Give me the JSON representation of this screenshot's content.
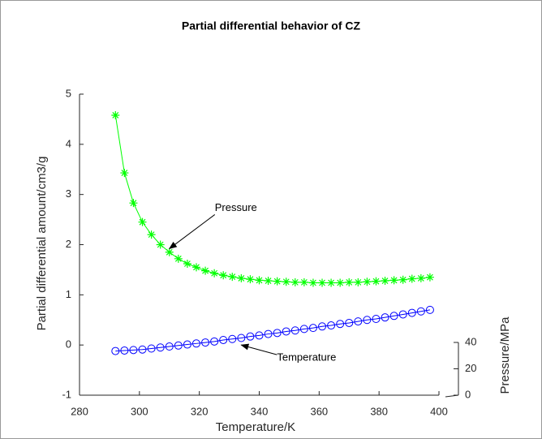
{
  "chart_data": {
    "type": "line",
    "title": "Partial differential behavior of CZ",
    "xlabel": "Temperature/K",
    "ylabel": "Partial differential amount/cm3/g",
    "zlabel": "Pressure/MPa",
    "x": [
      292,
      295,
      298,
      301,
      304,
      307,
      310,
      313,
      316,
      319,
      322,
      325,
      328,
      331,
      334,
      337,
      340,
      343,
      346,
      349,
      352,
      355,
      358,
      361,
      364,
      367,
      370,
      373,
      376,
      379,
      382,
      385,
      388,
      391,
      394,
      397
    ],
    "series": [
      {
        "name": "Pressure",
        "color": "#00ff00",
        "marker": "asterisk",
        "values": [
          4.58,
          3.43,
          2.83,
          2.45,
          2.2,
          2.0,
          1.85,
          1.72,
          1.62,
          1.55,
          1.48,
          1.43,
          1.39,
          1.36,
          1.33,
          1.31,
          1.29,
          1.28,
          1.27,
          1.26,
          1.25,
          1.25,
          1.24,
          1.24,
          1.24,
          1.24,
          1.25,
          1.25,
          1.26,
          1.27,
          1.28,
          1.29,
          1.3,
          1.32,
          1.33,
          1.35
        ]
      },
      {
        "name": "Temperature",
        "color": "#0000ff",
        "marker": "circle",
        "values": [
          -0.12,
          -0.11,
          -0.1,
          -0.09,
          -0.07,
          -0.05,
          -0.03,
          -0.01,
          0.01,
          0.03,
          0.05,
          0.07,
          0.1,
          0.12,
          0.14,
          0.17,
          0.19,
          0.22,
          0.24,
          0.27,
          0.29,
          0.32,
          0.34,
          0.37,
          0.39,
          0.42,
          0.44,
          0.47,
          0.5,
          0.52,
          0.55,
          0.58,
          0.61,
          0.64,
          0.67,
          0.7
        ]
      }
    ],
    "annotations": [
      {
        "text": "Pressure",
        "x": 310,
        "y": 1.92
      },
      {
        "text": "Temperature",
        "x": 334,
        "y": 0.0
      }
    ],
    "xlim": [
      280,
      400
    ],
    "xticks": [
      280,
      300,
      320,
      340,
      360,
      380,
      400
    ],
    "ylim": [
      -1,
      5
    ],
    "yticks": [
      -1,
      0,
      1,
      2,
      3,
      4,
      5
    ],
    "zlim": [
      0,
      40
    ],
    "zticks": [
      0,
      20,
      40
    ]
  }
}
